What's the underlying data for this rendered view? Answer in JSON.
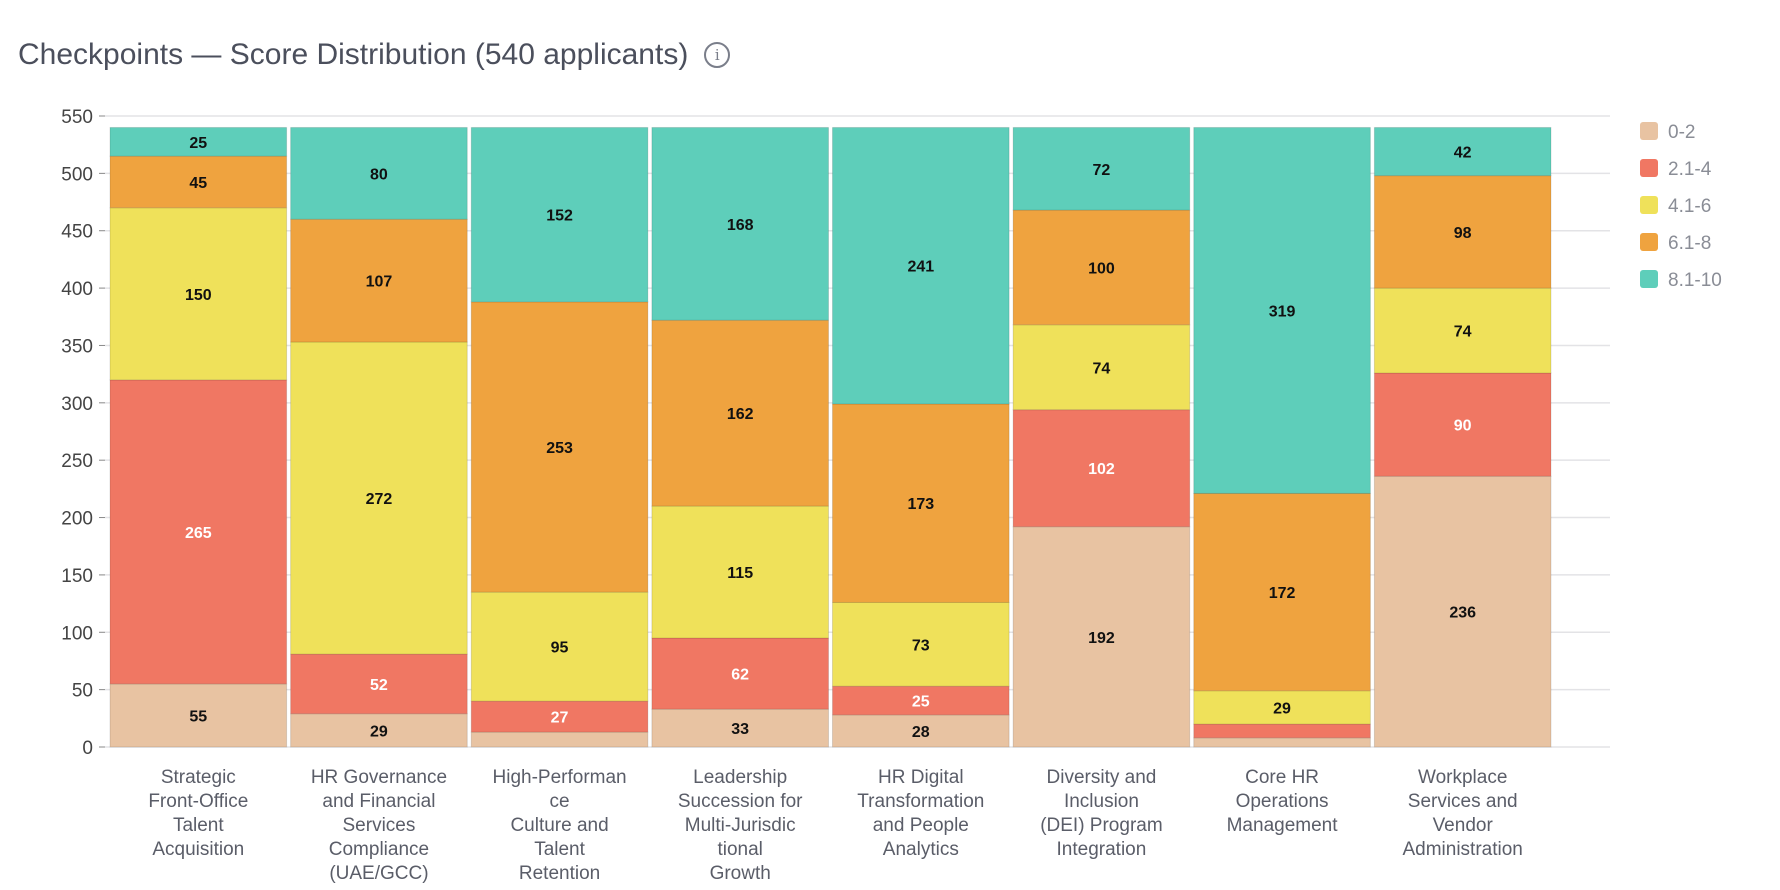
{
  "title": "Checkpoints — Score Distribution (540 applicants)",
  "chart_data": {
    "type": "bar",
    "stacked": true,
    "title": "Checkpoints — Score Distribution (540 applicants)",
    "xlabel": "",
    "ylabel": "",
    "ylim": [
      0,
      550
    ],
    "yticks": [
      0,
      50,
      100,
      150,
      200,
      250,
      300,
      350,
      400,
      450,
      500,
      550
    ],
    "grid": true,
    "legend_position": "right",
    "categories": [
      [
        "Strategic",
        "Front-Office",
        "Talent",
        "Acquisition"
      ],
      [
        "HR Governance",
        "and Financial",
        "Services",
        "Compliance",
        "(UAE/GCC)"
      ],
      [
        "High-Performan",
        "ce",
        "Culture and",
        "Talent",
        "Retention"
      ],
      [
        "Leadership",
        "Succession for",
        "Multi-Jurisdic",
        "tional",
        "Growth"
      ],
      [
        "HR Digital",
        "Transformation",
        "and People",
        "Analytics"
      ],
      [
        "Diversity and",
        "Inclusion",
        "(DEI) Program",
        "Integration"
      ],
      [
        "Core HR",
        "Operations",
        "Management"
      ],
      [
        "Workplace",
        "Services and",
        "Vendor",
        "Administration"
      ]
    ],
    "series": [
      {
        "name": "0-2",
        "color": "#E8C3A2",
        "label_color": "#111111",
        "values": [
          55,
          29,
          13,
          33,
          28,
          192,
          8,
          236
        ]
      },
      {
        "name": "2.1-4",
        "color": "#F07763",
        "label_color": "#ffffff",
        "values": [
          265,
          52,
          27,
          62,
          25,
          102,
          12,
          90
        ]
      },
      {
        "name": "4.1-6",
        "color": "#EFE15A",
        "label_color": "#111111",
        "values": [
          150,
          272,
          95,
          115,
          73,
          74,
          29,
          74
        ]
      },
      {
        "name": "6.1-8",
        "color": "#EFA33F",
        "label_color": "#111111",
        "values": [
          45,
          107,
          253,
          162,
          173,
          100,
          172,
          98
        ]
      },
      {
        "name": "8.1-10",
        "color": "#5ECEBA",
        "label_color": "#111111",
        "values": [
          25,
          80,
          152,
          168,
          241,
          72,
          319,
          42
        ]
      }
    ],
    "labels_shown_min": 20
  }
}
